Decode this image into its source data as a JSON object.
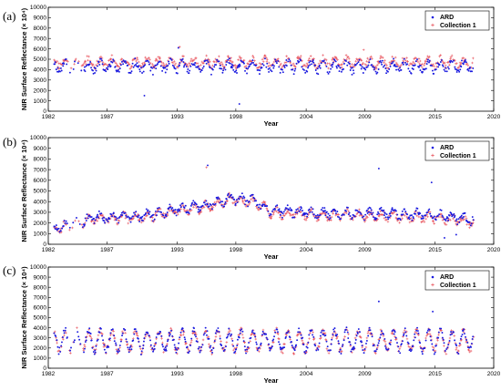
{
  "figure": {
    "xlabel": "Year",
    "ylabel": "NIR Surface Reflectance (× 10⁴)",
    "x_ticks": [
      1982,
      1987,
      1993,
      1998,
      2004,
      2009,
      2015,
      2020
    ],
    "y_ticks": [
      0,
      1000,
      2000,
      3000,
      4000,
      5000,
      6000,
      7000,
      8000,
      9000,
      10000
    ],
    "xlim": [
      1982,
      2020
    ],
    "ylim": [
      0,
      10000
    ]
  },
  "colors": {
    "ard": "#1a1adf",
    "collection1": "#e8505a"
  },
  "chart_data": [
    {
      "panel_label": "(a)",
      "type": "scatter",
      "xlabel": "Year",
      "ylabel": "NIR Surface Reflectance (× 10⁴)",
      "xlim": [
        1982,
        2020
      ],
      "ylim": [
        0,
        10000
      ],
      "legend_position": "top-right",
      "series": [
        {
          "name": "ARD",
          "marker": "dot",
          "color": "#1a1adf",
          "base": 4300,
          "amp": 450,
          "noise": 350,
          "start": 1982.5,
          "end": 2018.3,
          "seed": 11,
          "outliers": [
            [
              1990.2,
              1500
            ],
            [
              1998.3,
              700
            ],
            [
              1993.1,
              6100
            ]
          ]
        },
        {
          "name": "Collection 1",
          "marker": "plus",
          "color": "#e8505a",
          "base": 4700,
          "amp": 400,
          "noise": 300,
          "start": 1982.5,
          "end": 2018.3,
          "seed": 27,
          "outliers": [
            [
              1993.2,
              6200
            ],
            [
              2008.9,
              5900
            ]
          ]
        }
      ]
    },
    {
      "panel_label": "(b)",
      "type": "scatter",
      "xlabel": "Year",
      "ylabel": "NIR Surface Reflectance (× 10⁴)",
      "xlim": [
        1982,
        2020
      ],
      "ylim": [
        0,
        10000
      ],
      "legend_position": "top-right",
      "series": [
        {
          "name": "ARD",
          "marker": "dot",
          "color": "#1a1adf",
          "trend": [
            [
              1982.5,
              1500
            ],
            [
              1986,
              2500
            ],
            [
              1990,
              2600
            ],
            [
              1993,
              3300
            ],
            [
              1995.5,
              3600
            ],
            [
              1997.5,
              4300
            ],
            [
              1999.5,
              4100
            ],
            [
              2001,
              3200
            ],
            [
              2005,
              2900
            ],
            [
              2010,
              2900
            ],
            [
              2015,
              2700
            ],
            [
              2018.3,
              2300
            ]
          ],
          "amp": 350,
          "noise": 300,
          "start": 1982.5,
          "end": 2018.3,
          "seed": 43,
          "outliers": [
            [
              1995.6,
              7400
            ],
            [
              2010.2,
              7100
            ],
            [
              2014.7,
              5800
            ],
            [
              2015.8,
              600
            ],
            [
              2016.8,
              900
            ]
          ]
        },
        {
          "name": "Collection 1",
          "marker": "plus",
          "color": "#e8505a",
          "trend": [
            [
              1982.5,
              1400
            ],
            [
              1986,
              2400
            ],
            [
              1990,
              2500
            ],
            [
              1993,
              3200
            ],
            [
              1995.5,
              3500
            ],
            [
              1997.5,
              4200
            ],
            [
              1999.5,
              4000
            ],
            [
              2001,
              3000
            ],
            [
              2005,
              2700
            ],
            [
              2010,
              2700
            ],
            [
              2015,
              2500
            ],
            [
              2018.3,
              2100
            ]
          ],
          "amp": 350,
          "noise": 280,
          "start": 1982.5,
          "end": 2018.3,
          "seed": 59,
          "outliers": [
            [
              1995.5,
              7200
            ]
          ]
        }
      ]
    },
    {
      "panel_label": "(c)",
      "type": "scatter",
      "xlabel": "Year",
      "ylabel": "NIR Surface Reflectance (× 10⁴)",
      "xlim": [
        1982,
        2020
      ],
      "ylim": [
        0,
        10000
      ],
      "legend_position": "top-right",
      "series": [
        {
          "name": "ARD",
          "marker": "dot",
          "color": "#1a1adf",
          "base": 2700,
          "amp": 1000,
          "noise": 350,
          "start": 1982.5,
          "end": 2018.3,
          "seed": 71,
          "outliers": [
            [
              2010.2,
              6600
            ],
            [
              2014.8,
              5600
            ]
          ]
        },
        {
          "name": "Collection 1",
          "marker": "plus",
          "color": "#e8505a",
          "base": 2700,
          "amp": 1000,
          "noise": 330,
          "start": 1982.5,
          "end": 2018.3,
          "seed": 89,
          "outliers": []
        }
      ]
    }
  ]
}
